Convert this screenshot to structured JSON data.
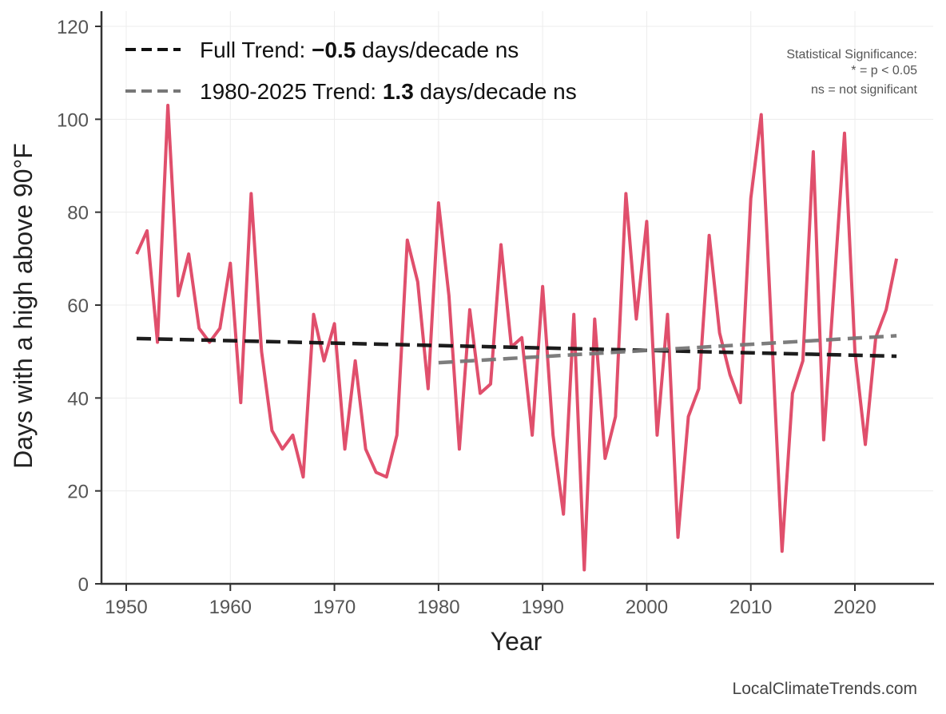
{
  "chart_data": {
    "type": "line",
    "xlabel": "Year",
    "ylabel": "Days with a high above 90°F",
    "xlim": [
      1947.5,
      2028
    ],
    "ylim": [
      0,
      123
    ],
    "xticks": [
      1950,
      1960,
      1970,
      1980,
      1990,
      2000,
      2010,
      2020
    ],
    "yticks": [
      0,
      20,
      40,
      60,
      80,
      100,
      120
    ],
    "grid": true,
    "line_color": "#e04f6c",
    "x": [
      1951,
      1952,
      1953,
      1954,
      1955,
      1956,
      1957,
      1958,
      1959,
      1960,
      1961,
      1962,
      1963,
      1964,
      1965,
      1966,
      1967,
      1968,
      1969,
      1970,
      1971,
      1972,
      1973,
      1974,
      1975,
      1976,
      1977,
      1978,
      1979,
      1980,
      1981,
      1982,
      1983,
      1984,
      1985,
      1986,
      1987,
      1988,
      1989,
      1990,
      1991,
      1992,
      1993,
      1994,
      1995,
      1996,
      1997,
      1998,
      1999,
      2000,
      2001,
      2002,
      2003,
      2004,
      2005,
      2006,
      2007,
      2008,
      2009,
      2010,
      2011,
      2012,
      2013,
      2014,
      2015,
      2016,
      2017,
      2018,
      2019,
      2020,
      2021,
      2022,
      2023,
      2024
    ],
    "values": [
      71,
      76,
      52,
      103,
      62,
      71,
      55,
      52,
      55,
      69,
      39,
      84,
      50,
      33,
      29,
      32,
      23,
      58,
      48,
      56,
      29,
      48,
      29,
      24,
      23,
      32,
      74,
      65,
      42,
      82,
      62,
      29,
      59,
      41,
      43,
      73,
      51,
      53,
      32,
      64,
      32,
      15,
      58,
      3,
      57,
      27,
      36,
      84,
      57,
      78,
      32,
      58,
      10,
      36,
      42,
      75,
      54,
      45,
      39,
      83,
      101,
      54,
      7,
      41,
      48,
      93,
      31,
      64,
      97,
      50,
      30,
      53,
      59,
      70
    ],
    "trends": [
      {
        "name": "full",
        "x": [
          1951,
          2024
        ],
        "y": [
          52.8,
          49.0
        ],
        "color": "#111111"
      },
      {
        "name": "recent",
        "x": [
          1980,
          2024
        ],
        "y": [
          47.6,
          53.4
        ],
        "color": "#777777"
      }
    ],
    "legend": {
      "placement": "top-left",
      "full_prefix": "Full Trend: ",
      "full_value": "−0.5",
      "full_suffix": " days/decade ns",
      "recent_prefix": "1980-2025 Trend: ",
      "recent_value": "1.3",
      "recent_suffix": " days/decade ns"
    },
    "annotation": {
      "line1": "Statistical Significance:",
      "line2": "* = p < 0.05",
      "line3": "ns = not significant"
    },
    "credit": "LocalClimateTrends.com"
  }
}
